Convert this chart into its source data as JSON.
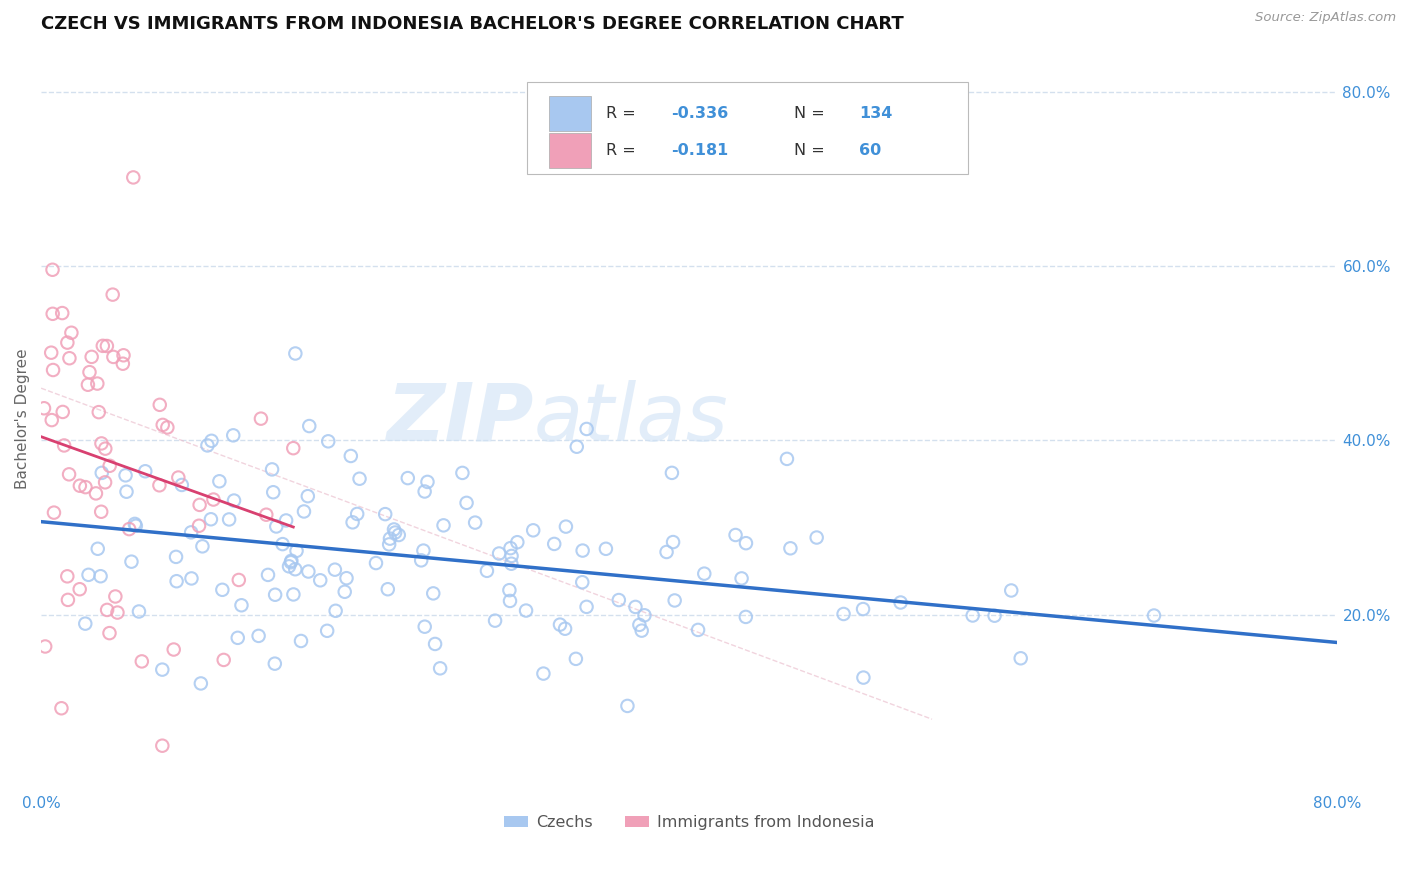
{
  "title": "CZECH VS IMMIGRANTS FROM INDONESIA BACHELOR'S DEGREE CORRELATION CHART",
  "source": "Source: ZipAtlas.com",
  "ylabel": "Bachelor's Degree",
  "watermark_1": "ZIP",
  "watermark_2": "atlas",
  "xmin": 0.0,
  "xmax": 0.8,
  "ymin": 0.0,
  "ymax": 0.85,
  "legend_r1_label": "R = ",
  "legend_r1_val": "-0.336",
  "legend_n1_label": "N = ",
  "legend_n1_val": "134",
  "legend_r2_label": "R = ",
  "legend_r2_val": "-0.181",
  "legend_n2_label": "N = ",
  "legend_n2_val": "60",
  "blue_color": "#A8C8F0",
  "pink_color": "#F0A0B8",
  "line_blue": "#3070C8",
  "line_pink": "#D84070",
  "line_dashed": "#C0D0E8",
  "tick_color": "#4090D8",
  "grid_color": "#D0DDED",
  "title_color": "#111111",
  "bg_color": "#FFFFFF",
  "n_blue": 134,
  "n_pink": 60,
  "r_blue": -0.336,
  "r_pink": -0.181,
  "seed_blue": 42,
  "seed_pink": 123,
  "ytick_labels": [
    "20.0%",
    "40.0%",
    "60.0%",
    "80.0%"
  ],
  "ytick_vals": [
    0.2,
    0.4,
    0.6,
    0.8
  ],
  "xtick_start": "0.0%",
  "xtick_end": "80.0%"
}
